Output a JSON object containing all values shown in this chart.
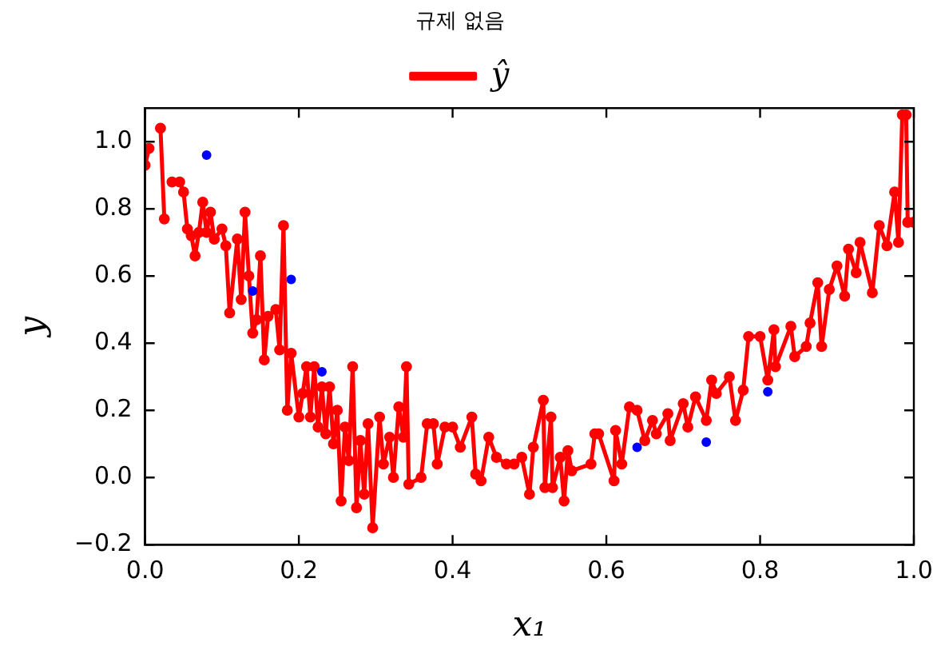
{
  "chart_data": {
    "type": "line",
    "title": "규제 없음",
    "xlabel": "x₁",
    "ylabel": "y",
    "xlim": [
      0,
      1
    ],
    "ylim": [
      -0.2,
      1.1
    ],
    "xticks": [
      {
        "value": 0,
        "label": "0.0"
      },
      {
        "value": 0.2,
        "label": "0.2"
      },
      {
        "value": 0.4,
        "label": "0.4"
      },
      {
        "value": 0.6,
        "label": "0.6"
      },
      {
        "value": 0.8,
        "label": "0.8"
      },
      {
        "value": 1,
        "label": "1.0"
      }
    ],
    "yticks": [
      {
        "value": -0.2,
        "label": "−0.2"
      },
      {
        "value": 0,
        "label": "0.0"
      },
      {
        "value": 0.2,
        "label": "0.2"
      },
      {
        "value": 0.4,
        "label": "0.4"
      },
      {
        "value": 0.6,
        "label": "0.6"
      },
      {
        "value": 0.8,
        "label": "0.8"
      },
      {
        "value": 1,
        "label": "1.0"
      }
    ],
    "grid": false,
    "legend": "top",
    "marker": "circle",
    "line_style": "solid",
    "series": [
      {
        "name": "ŷ",
        "color": "#ff0000",
        "x": [
          0,
          0.005,
          0.012,
          0.02,
          0.025,
          0.03,
          0.035,
          0.045,
          0.05,
          0.055,
          0.06,
          0.065,
          0.07,
          0.075,
          0.08,
          0.085,
          0.09,
          0.1,
          0.105,
          0.11,
          0.12,
          0.125,
          0.13,
          0.135,
          0.14,
          0.145,
          0.15,
          0.155,
          0.16,
          0.17,
          0.175,
          0.18,
          0.185,
          0.19,
          0.2,
          0.205,
          0.21,
          0.215,
          0.22,
          0.225,
          0.23,
          0.235,
          0.24,
          0.245,
          0.25,
          0.255,
          0.26,
          0.265,
          0.27,
          0.275,
          0.28,
          0.285,
          0.29,
          0.296,
          0.305,
          0.31,
          0.318,
          0.323,
          0.33,
          0.336,
          0.34,
          0.343,
          0.359,
          0.367,
          0.375,
          0.38,
          0.39,
          0.4,
          0.41,
          0.425,
          0.43,
          0.437,
          0.447,
          0.457,
          0.47,
          0.48,
          0.49,
          0.5,
          0.505,
          0.518,
          0.52,
          0.528,
          0.53,
          0.54,
          0.545,
          0.55,
          0.555,
          0.58,
          0.585,
          0.59,
          0.61,
          0.612,
          0.62,
          0.63,
          0.64,
          0.65,
          0.66,
          0.665,
          0.68,
          0.683,
          0.7,
          0.706,
          0.716,
          0.73,
          0.737,
          0.743,
          0.76,
          0.768,
          0.778,
          0.785,
          0.8,
          0.81,
          0.818,
          0.82,
          0.84,
          0.845,
          0.86,
          0.865,
          0.875,
          0.88,
          0.89,
          0.9,
          0.91,
          0.915,
          0.925,
          0.93,
          0.946,
          0.955,
          0.965,
          0.975,
          0.98,
          0.985,
          0.99,
          0.992,
          1
        ],
        "values": [
          0.93,
          0.98,
          null,
          1.04,
          0.77,
          null,
          0.88,
          0.88,
          0.85,
          0.74,
          0.72,
          0.66,
          0.73,
          0.82,
          0.73,
          0.79,
          0.71,
          0.74,
          0.69,
          0.49,
          0.71,
          0.53,
          0.79,
          0.6,
          0.43,
          0.47,
          0.66,
          0.35,
          0.48,
          0.5,
          0.38,
          0.75,
          0.2,
          0.37,
          0.18,
          0.25,
          0.33,
          0.18,
          0.33,
          0.15,
          0.27,
          0.13,
          0.27,
          0.1,
          0.2,
          -0.07,
          0.15,
          0.05,
          0.33,
          -0.09,
          0.11,
          -0.05,
          0.16,
          -0.15,
          0.18,
          0.04,
          0.12,
          0,
          0.21,
          0.12,
          0.33,
          -0.02,
          0,
          0.16,
          0.16,
          0.04,
          0.15,
          0.15,
          0.09,
          0.18,
          0.01,
          -0.01,
          0.12,
          0.06,
          0.04,
          0.04,
          0.06,
          -0.05,
          0.09,
          0.23,
          -0.03,
          0.18,
          -0.03,
          0.06,
          -0.07,
          0.08,
          0.02,
          0.04,
          0.13,
          0.13,
          -0.01,
          0.14,
          0.04,
          0.21,
          0.2,
          0.11,
          0.17,
          0.13,
          0.19,
          0.11,
          0.22,
          0.15,
          0.24,
          0.17,
          0.29,
          0.25,
          0.3,
          0.17,
          0.26,
          0.42,
          0.42,
          0.29,
          0.44,
          0.33,
          0.45,
          0.36,
          0.39,
          0.46,
          0.58,
          0.39,
          0.56,
          0.63,
          0.54,
          0.68,
          0.61,
          0.7,
          0.55,
          0.75,
          0.69,
          0.85,
          0.7,
          1.08,
          1.08,
          0.76,
          0.76
        ]
      },
      {
        "color": "#0000ff",
        "type": "scatter",
        "x": [
          0.08,
          0.14,
          0.19,
          0.23,
          0.64,
          0.73,
          0.81
        ],
        "values": [
          0.96,
          0.555,
          0.59,
          0.315,
          0.09,
          0.105,
          0.255
        ]
      }
    ]
  }
}
